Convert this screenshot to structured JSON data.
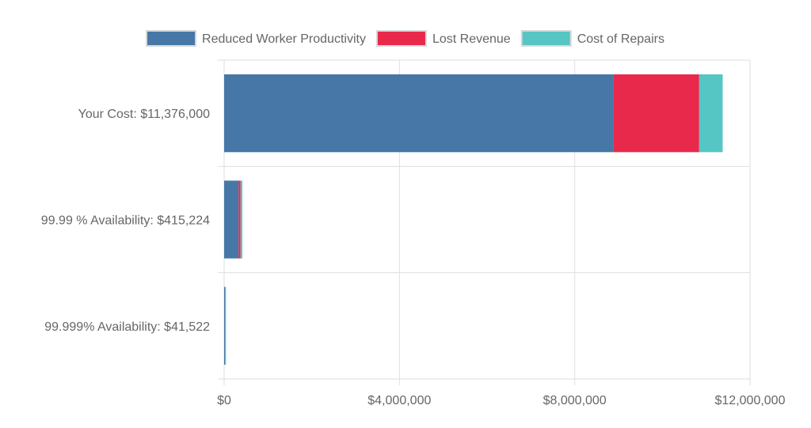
{
  "chart_data": {
    "type": "bar",
    "orientation": "horizontal",
    "stacked": true,
    "title": "",
    "xlabel": "",
    "ylabel": "",
    "categories": [
      "Your Cost: $11,376,000",
      "99.99 % Availability: $415,224",
      "99.999% Availability: $41,522"
    ],
    "series": [
      {
        "name": "Reduced Worker Productivity",
        "color": "#4677a7",
        "values": [
          8880000,
          330000,
          20000
        ]
      },
      {
        "name": "Lost Revenue",
        "color": "#e8294c",
        "values": [
          1960000,
          45000,
          5000
        ]
      },
      {
        "name": "Cost of Repairs",
        "color": "#55c6c4",
        "values": [
          536000,
          40224,
          16522
        ]
      }
    ],
    "xlim": [
      0,
      12000000
    ],
    "xticks": [
      0,
      4000000,
      8000000,
      12000000
    ],
    "xtick_labels": [
      "$0",
      "$4,000,000",
      "$8,000,000",
      "$12,000,000"
    ],
    "grid": true,
    "legend_position": "top"
  }
}
